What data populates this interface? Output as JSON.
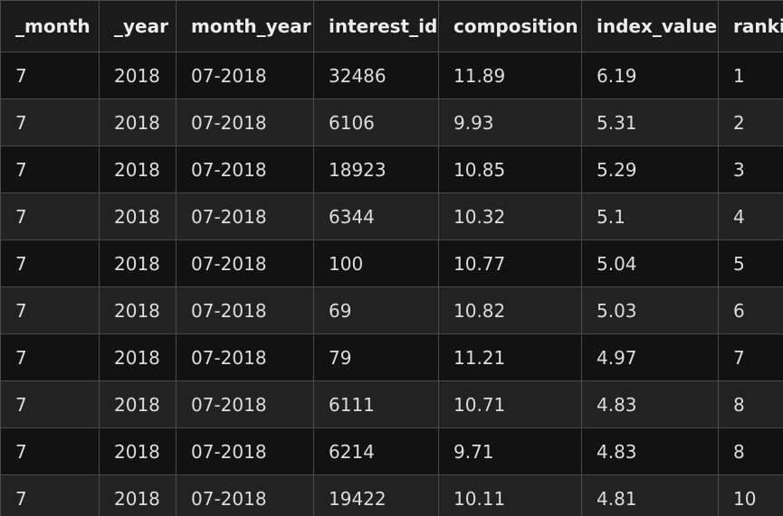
{
  "table": {
    "columns": [
      "_month",
      "_year",
      "month_year",
      "interest_id",
      "composition",
      "index_value",
      "ranking"
    ],
    "rows": [
      [
        "7",
        "2018",
        "07-2018",
        "32486",
        "11.89",
        "6.19",
        "1"
      ],
      [
        "7",
        "2018",
        "07-2018",
        "6106",
        "9.93",
        "5.31",
        "2"
      ],
      [
        "7",
        "2018",
        "07-2018",
        "18923",
        "10.85",
        "5.29",
        "3"
      ],
      [
        "7",
        "2018",
        "07-2018",
        "6344",
        "10.32",
        "5.1",
        "4"
      ],
      [
        "7",
        "2018",
        "07-2018",
        "100",
        "10.77",
        "5.04",
        "5"
      ],
      [
        "7",
        "2018",
        "07-2018",
        "69",
        "10.82",
        "5.03",
        "6"
      ],
      [
        "7",
        "2018",
        "07-2018",
        "79",
        "11.21",
        "4.97",
        "7"
      ],
      [
        "7",
        "2018",
        "07-2018",
        "6111",
        "10.71",
        "4.83",
        "8"
      ],
      [
        "7",
        "2018",
        "07-2018",
        "6214",
        "9.71",
        "4.83",
        "8"
      ],
      [
        "7",
        "2018",
        "07-2018",
        "19422",
        "10.11",
        "4.81",
        "10"
      ]
    ]
  }
}
